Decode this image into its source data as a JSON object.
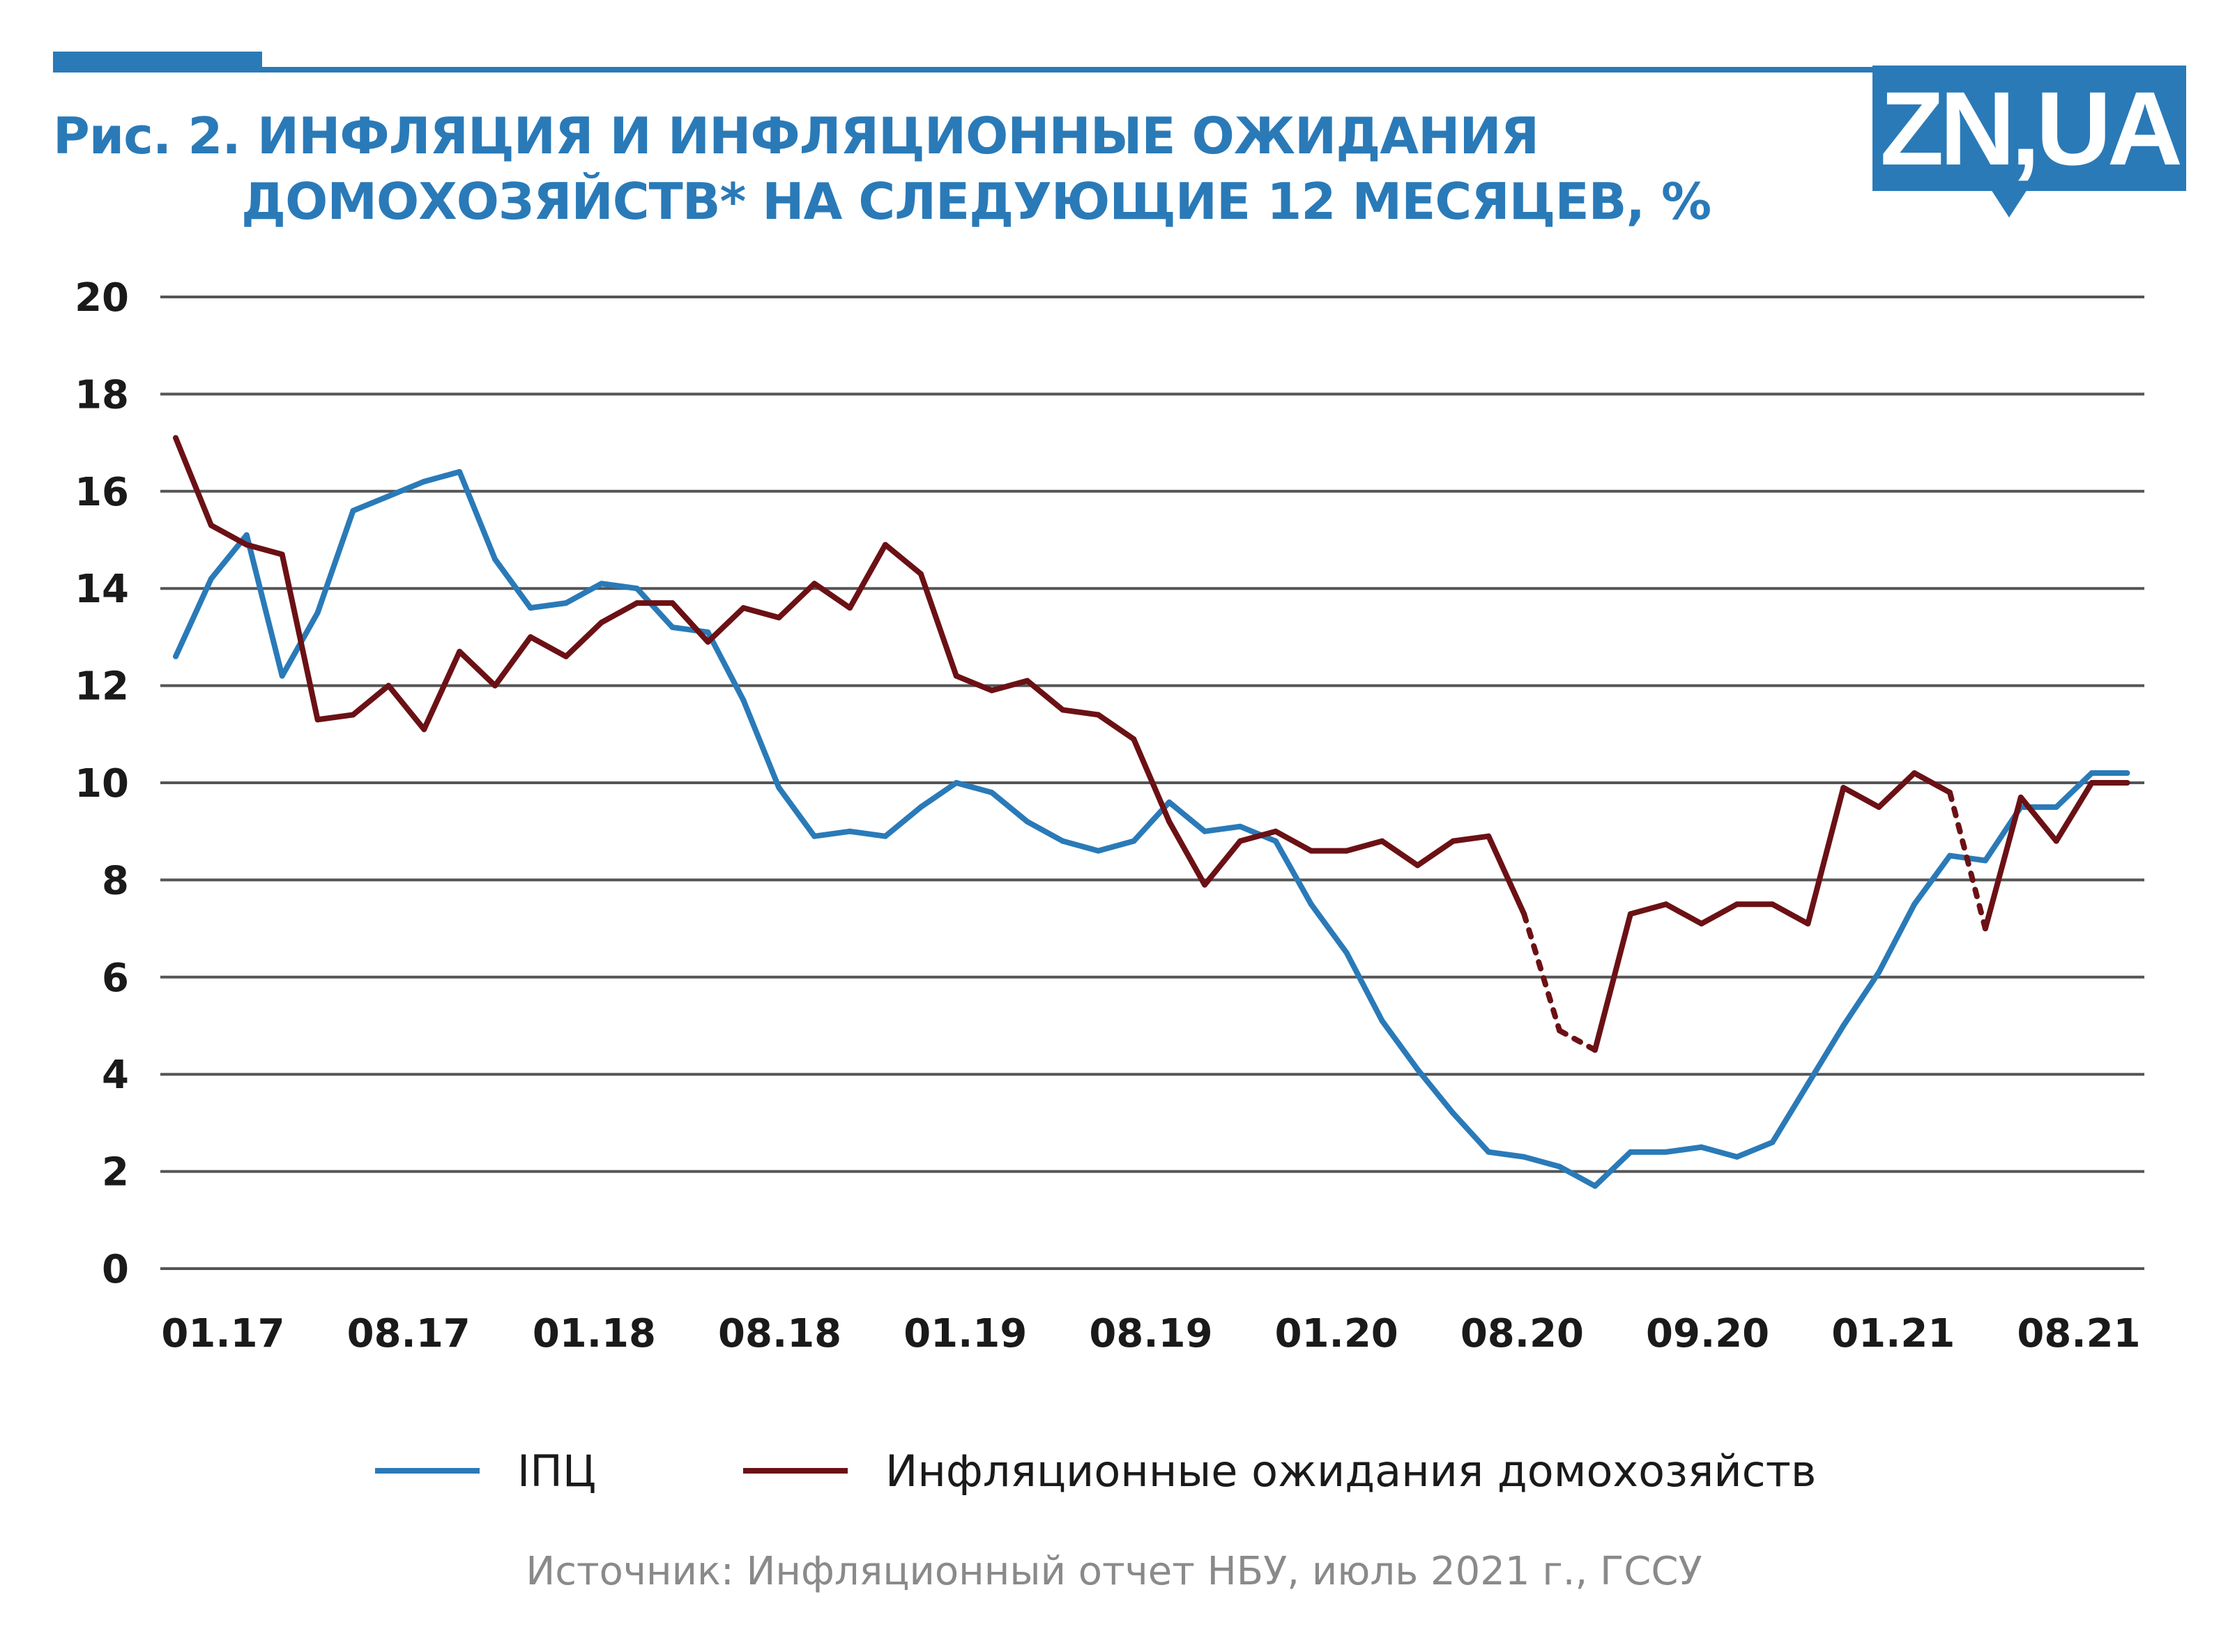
{
  "header": {
    "title_line1": "Рис. 2. ИНФЛЯЦИЯ И ИНФЛЯЦИОННЫЕ ОЖИДАНИЯ",
    "title_line2": "ДОМОХОЗЯЙСТВ* НА СЛЕДУЮЩИЕ 12 МЕСЯЦЕВ, %",
    "logo_text": "ZN,UA"
  },
  "source": "Источник: Инфляционный отчет НБУ, июль 2021 г., ГССУ",
  "colors": {
    "accent": "#2a7ab8",
    "cpi": "#2a7ab8",
    "expectations": "#6b1115",
    "grid": "#555555"
  },
  "chart_data": {
    "type": "line",
    "title": "Рис. 2. ИНФЛЯЦИЯ И ИНФЛЯЦИОННЫЕ ОЖИДАНИЯ ДОМОХОЗЯЙСТВ* НА СЛЕДУЮЩИЕ 12 МЕСЯЦЕВ, %",
    "xlabel": "",
    "ylabel": "",
    "ylim": [
      0,
      20
    ],
    "yticks": [
      "0",
      "2",
      "4",
      "6",
      "8",
      "10",
      "12",
      "14",
      "16",
      "18",
      "20"
    ],
    "xticks": [
      "01.17",
      "08.17",
      "01.18",
      "08.18",
      "01.19",
      "08.19",
      "01.20",
      "08.20",
      "09.20",
      "01.21",
      "08.21"
    ],
    "grid": true,
    "legend_position": "bottom",
    "series": [
      {
        "name": "ІПЦ",
        "color": "#2a7ab8",
        "values": [
          12.6,
          14.2,
          15.1,
          12.2,
          13.5,
          15.6,
          15.9,
          16.2,
          16.4,
          14.6,
          13.6,
          13.7,
          14.1,
          14.0,
          13.2,
          13.1,
          11.7,
          9.9,
          8.9,
          9.0,
          8.9,
          9.5,
          10.0,
          9.8,
          9.2,
          8.8,
          8.6,
          8.8,
          9.6,
          9.0,
          9.1,
          8.8,
          7.5,
          6.5,
          5.1,
          4.1,
          3.2,
          2.4,
          2.3,
          2.1,
          1.7,
          2.4,
          2.4,
          2.5,
          2.3,
          2.6,
          3.8,
          5.0,
          6.1,
          7.5,
          8.5,
          8.4,
          9.5,
          9.5,
          10.2,
          10.2
        ]
      },
      {
        "name": "Инфляционные ожидания домохозяйств",
        "color": "#6b1115",
        "values": [
          17.1,
          15.3,
          14.9,
          14.7,
          11.3,
          11.4,
          12.0,
          11.1,
          12.7,
          12.0,
          13.0,
          12.6,
          13.3,
          13.7,
          13.7,
          12.9,
          13.6,
          13.4,
          14.1,
          13.6,
          14.9,
          14.3,
          12.2,
          11.9,
          12.1,
          11.5,
          11.4,
          10.9,
          9.2,
          7.9,
          8.8,
          9.0,
          8.6,
          8.6,
          8.8,
          8.3,
          8.8,
          8.9,
          7.3,
          4.9,
          4.5,
          7.3,
          7.5,
          7.1,
          7.5,
          7.5,
          7.1,
          9.9,
          9.5,
          10.2,
          9.8,
          7.0,
          9.7,
          8.8,
          10.0,
          10.0
        ],
        "dashed_segments": [
          [
            38,
            40
          ],
          [
            50,
            51
          ]
        ]
      }
    ]
  }
}
